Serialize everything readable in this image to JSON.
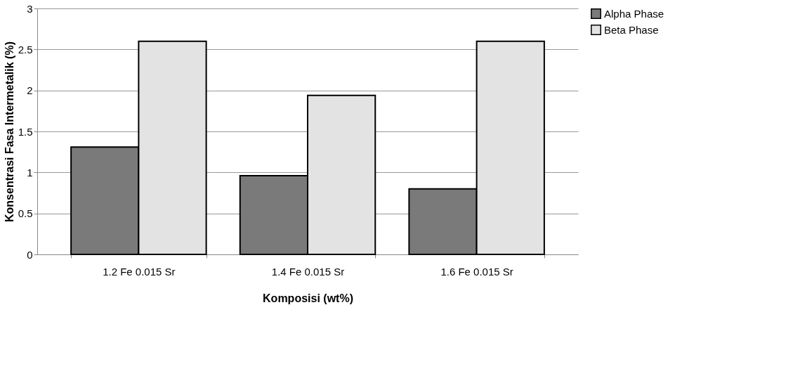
{
  "chart_data": {
    "type": "bar",
    "xlabel": "Komposisi (wt%)",
    "ylabel": "Konsentrasi Fasa Intermetalik (%)",
    "categories": [
      "1.2 Fe 0.015 Sr",
      "1.4 Fe 0.015 Sr",
      "1.6 Fe 0.015 Sr"
    ],
    "series": [
      {
        "name": "Alpha Phase",
        "color": "#7a7a7a",
        "values": [
          1.31,
          0.96,
          0.8
        ]
      },
      {
        "name": "Beta Phase",
        "color": "#e3e3e3",
        "values": [
          2.6,
          1.94,
          2.6
        ]
      }
    ],
    "ylim": [
      0,
      3
    ],
    "yticks": [
      0,
      0.5,
      1,
      1.5,
      2,
      2.5,
      3
    ],
    "grid": "y",
    "legend": "right"
  }
}
